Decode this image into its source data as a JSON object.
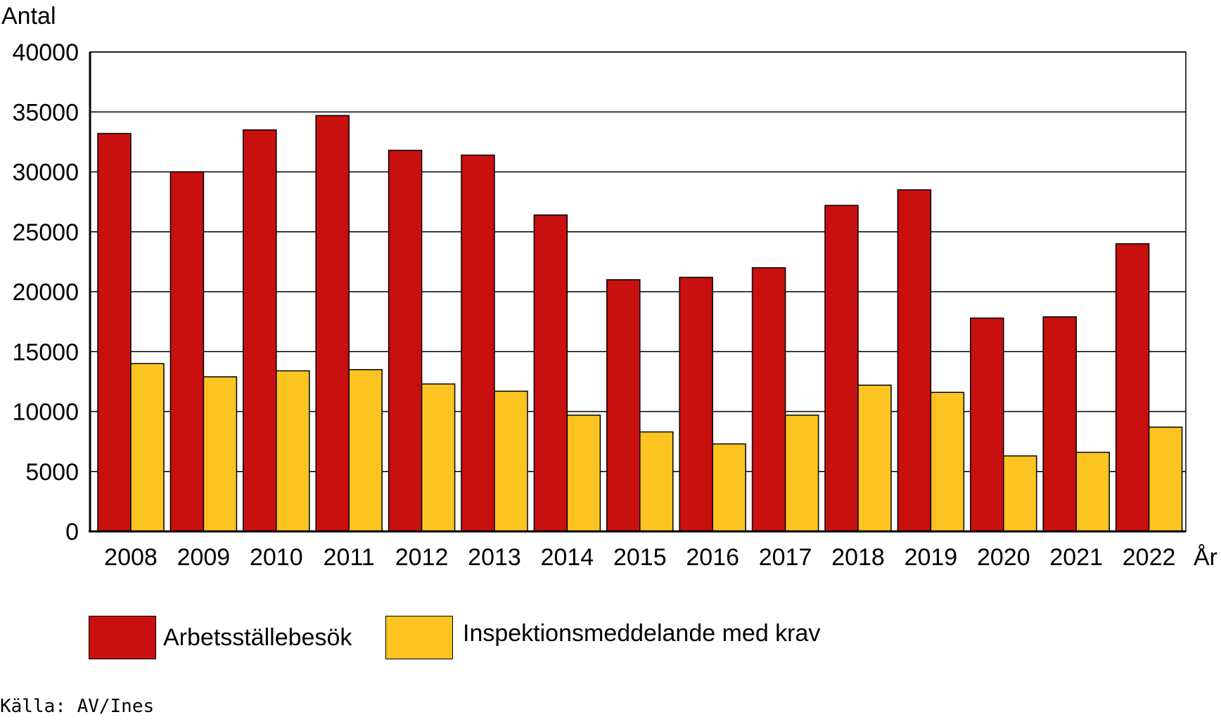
{
  "chart_data": {
    "type": "bar",
    "ylabel": "Antal",
    "xlabel": "År",
    "ylim": [
      0,
      40000
    ],
    "yticks": [
      0,
      5000,
      10000,
      15000,
      20000,
      25000,
      30000,
      35000,
      40000
    ],
    "grid": true,
    "legend_position": "bottom",
    "categories": [
      "2008",
      "2009",
      "2010",
      "2011",
      "2012",
      "2013",
      "2014",
      "2015",
      "2016",
      "2017",
      "2018",
      "2019",
      "2020",
      "2021",
      "2022"
    ],
    "series": [
      {
        "name": "Arbetsställebesök",
        "color": "#c8100f",
        "values": [
          33200,
          30000,
          33500,
          34700,
          31800,
          31400,
          26400,
          21000,
          21200,
          22000,
          27200,
          28500,
          17800,
          17900,
          24000
        ]
      },
      {
        "name": "Inspektionsmeddelande med krav",
        "color": "#fcc421",
        "values": [
          14000,
          12900,
          13400,
          13500,
          12300,
          11700,
          9700,
          8300,
          7300,
          9700,
          12200,
          11600,
          6300,
          6600,
          8700
        ]
      }
    ]
  },
  "source": "Källa: AV/Ines"
}
